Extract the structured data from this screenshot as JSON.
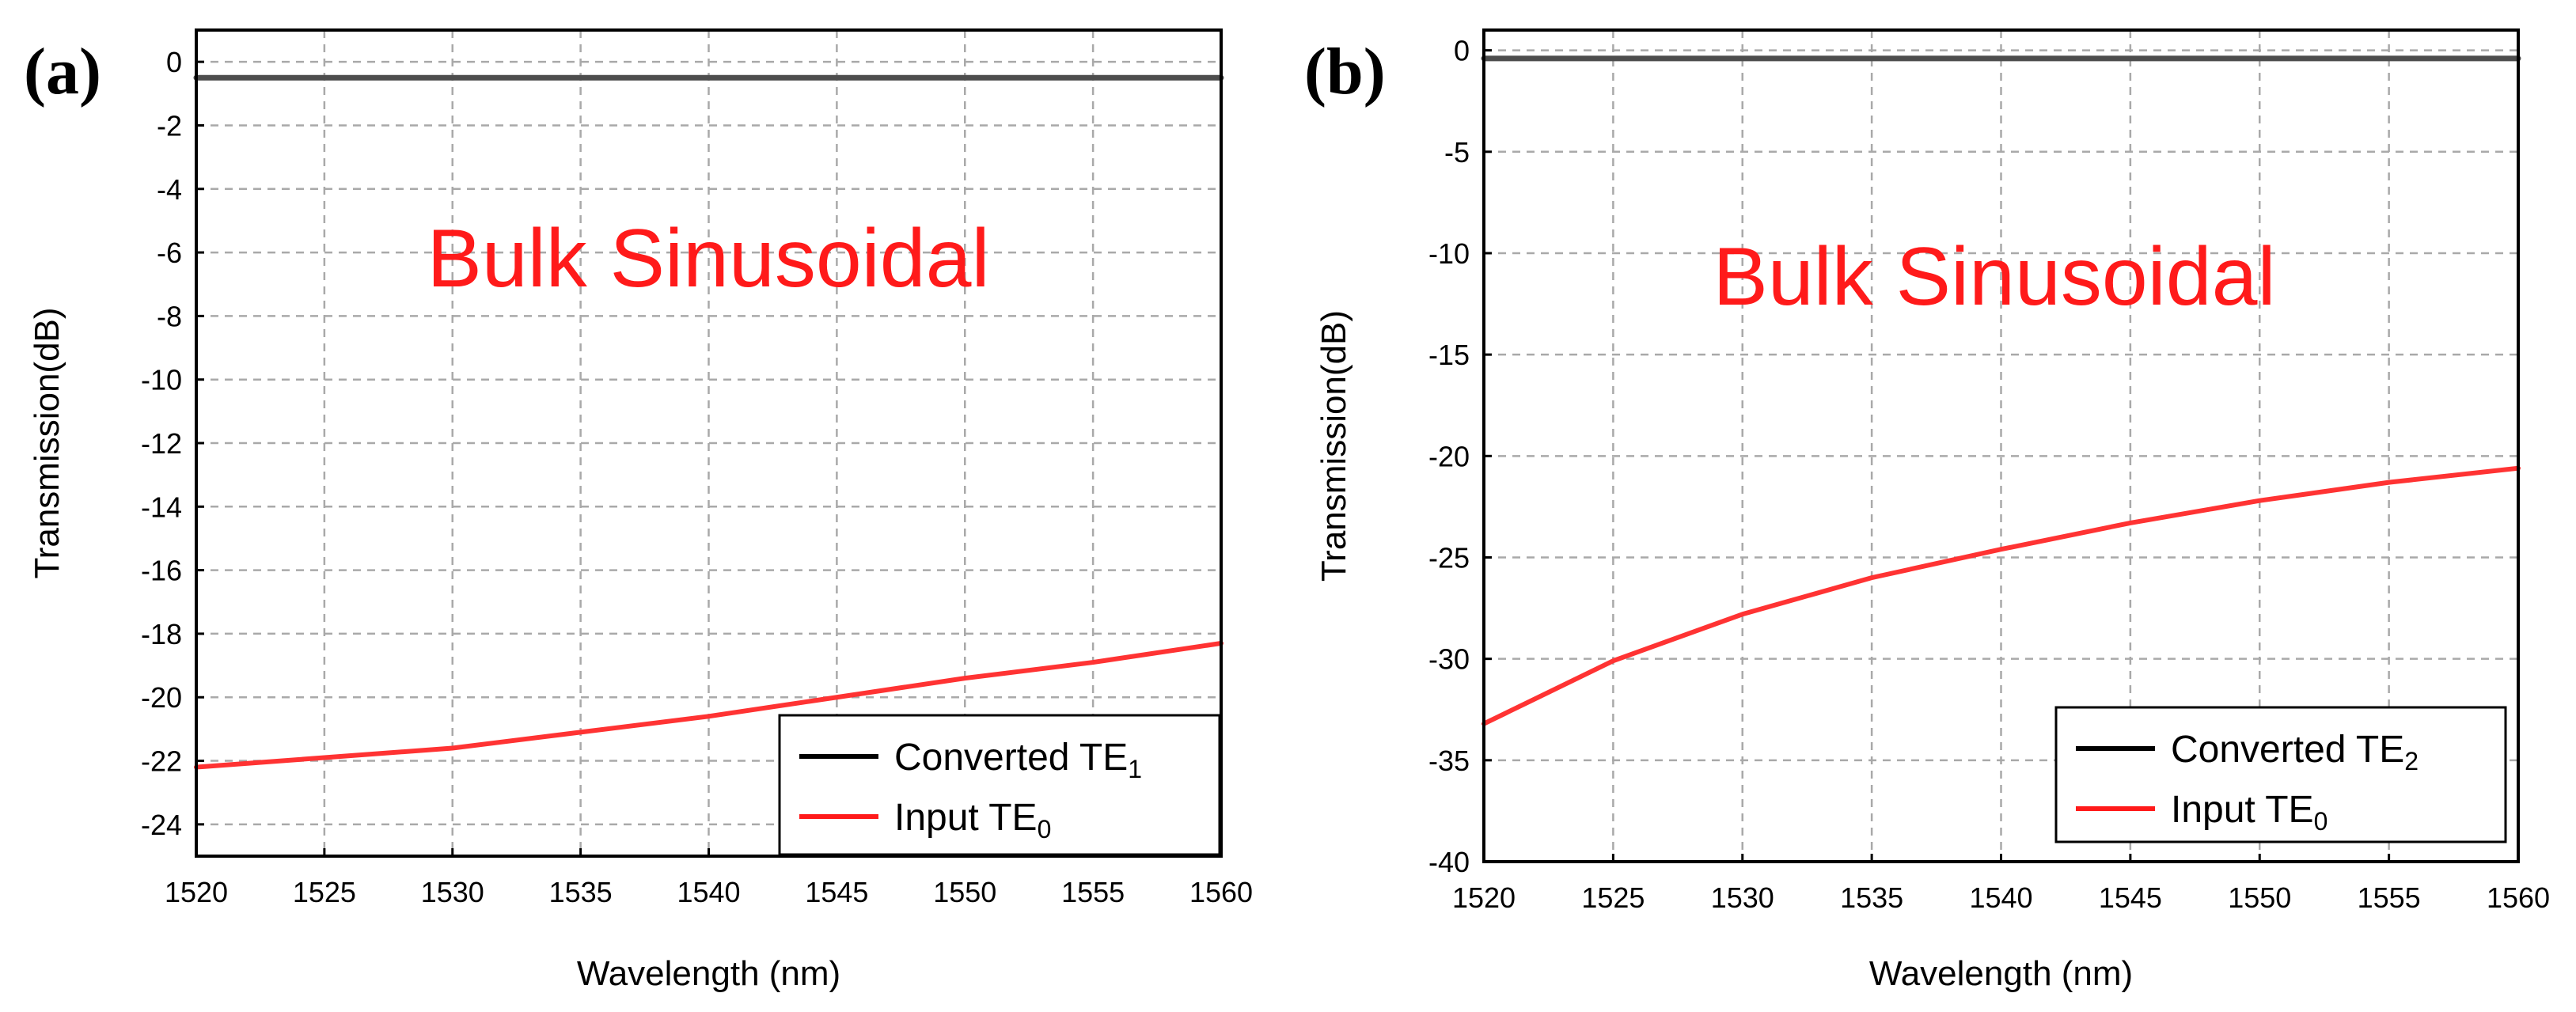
{
  "chart_data": [
    {
      "panel_label": "(a)",
      "type": "line",
      "xlabel": "Wavelength (nm)",
      "ylabel": "Transmission(dB)",
      "xlim": [
        1520,
        1560
      ],
      "ylim": [
        -25,
        1
      ],
      "xticks": [
        1520,
        1525,
        1530,
        1535,
        1540,
        1545,
        1550,
        1555,
        1560
      ],
      "yticks": [
        0,
        -2,
        -4,
        -6,
        -8,
        -10,
        -12,
        -14,
        -16,
        -18,
        -20,
        -22,
        -24
      ],
      "annotation": "Bulk Sinusoidal",
      "legend": {
        "position": "bottom-right"
      },
      "series": [
        {
          "name": "Converted TE",
          "mode_subscript": "1",
          "color": "#4d4d4d",
          "x": [
            1520,
            1530,
            1540,
            1550,
            1560
          ],
          "y": [
            -0.5,
            -0.5,
            -0.5,
            -0.5,
            -0.5
          ]
        },
        {
          "name": "Input TE",
          "mode_subscript": "0",
          "color": "#ff3333",
          "x": [
            1520,
            1525,
            1530,
            1535,
            1540,
            1545,
            1550,
            1555,
            1560
          ],
          "y": [
            -22.2,
            -21.9,
            -21.6,
            -21.1,
            -20.6,
            -20.0,
            -19.4,
            -18.9,
            -18.3
          ]
        }
      ]
    },
    {
      "panel_label": "(b)",
      "type": "line",
      "xlabel": "Wavelength (nm)",
      "ylabel": "Transmission(dB)",
      "xlim": [
        1520,
        1560
      ],
      "ylim": [
        -40,
        1
      ],
      "xticks": [
        1520,
        1525,
        1530,
        1535,
        1540,
        1545,
        1550,
        1555,
        1560
      ],
      "yticks": [
        0,
        -5,
        -10,
        -15,
        -20,
        -25,
        -30,
        -35,
        -40
      ],
      "annotation": "Bulk Sinusoidal",
      "legend": {
        "position": "bottom-right"
      },
      "series": [
        {
          "name": "Converted TE",
          "mode_subscript": "2",
          "color": "#4d4d4d",
          "x": [
            1520,
            1530,
            1540,
            1550,
            1560
          ],
          "y": [
            -0.4,
            -0.4,
            -0.4,
            -0.4,
            -0.4
          ]
        },
        {
          "name": "Input TE",
          "mode_subscript": "0",
          "color": "#ff3333",
          "x": [
            1520,
            1525,
            1530,
            1535,
            1540,
            1545,
            1550,
            1555,
            1560
          ],
          "y": [
            -33.2,
            -30.1,
            -27.8,
            -26.0,
            -24.6,
            -23.3,
            -22.2,
            -21.3,
            -20.6
          ]
        }
      ]
    }
  ],
  "colors": {
    "annotation": "#ff1a1a",
    "legend_converted": "#000000",
    "legend_input": "#ff1a1a"
  }
}
